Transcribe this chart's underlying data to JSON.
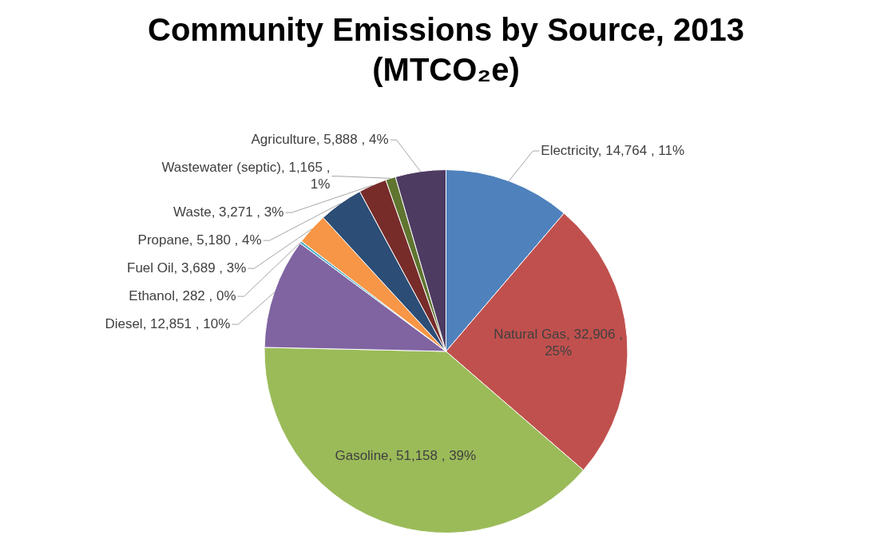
{
  "chart_data": {
    "type": "pie",
    "title": "Community Emissions by Source, 2013 (MTCO₂e)",
    "categories": [
      "Electricity",
      "Natural Gas",
      "Gasoline",
      "Diesel",
      "Ethanol",
      "Fuel Oil",
      "Propane",
      "Waste",
      "Wastewater (septic)",
      "Agriculture"
    ],
    "values": [
      14764,
      32906,
      51158,
      12851,
      282,
      3689,
      5180,
      3271,
      1165,
      5888
    ],
    "colors": [
      "#4f81bd",
      "#c0504d",
      "#9bbb59",
      "#8064a2",
      "#4bacc6",
      "#f79646",
      "#2c4d75",
      "#772c2a",
      "#5f7530",
      "#4d3b62"
    ],
    "value_labels": [
      "14,764 , 11%",
      "32,906 , 25%",
      "51,158 , 39%",
      "12,851 , 10%",
      "282 , 0%",
      "3,689 , 3%",
      "5,180 , 4%",
      "3,271 , 3%",
      "1,165 , 1%",
      "5,888 , 4%"
    ]
  }
}
